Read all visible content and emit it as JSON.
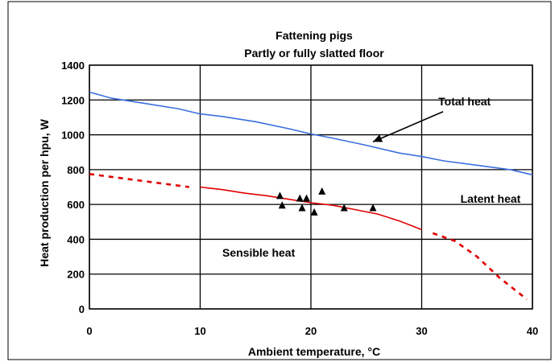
{
  "chart_data": {
    "type": "line",
    "title": "Fattening pigs",
    "subtitle": "Partly or fully slatted floor",
    "xlabel": "Ambient temperature, °C",
    "ylabel": "Heat production per hpu, W",
    "xlim": [
      0,
      40
    ],
    "ylim": [
      0,
      1400
    ],
    "x_ticks": [
      "0",
      "10",
      "20",
      "30",
      "40"
    ],
    "y_ticks": [
      "0",
      "200",
      "400",
      "600",
      "800",
      "1000",
      "1200",
      "1400"
    ],
    "grid": true,
    "series": [
      {
        "name": "Total heat",
        "color": "#3a6fe0",
        "style": "solid",
        "x": [
          0,
          2,
          5,
          8,
          10,
          12,
          15,
          18,
          20,
          22,
          25,
          28,
          30,
          32,
          35,
          38,
          40
        ],
        "y": [
          1245,
          1210,
          1180,
          1150,
          1120,
          1105,
          1075,
          1035,
          1005,
          980,
          940,
          895,
          875,
          850,
          825,
          800,
          770
        ]
      },
      {
        "name": "Latent heat",
        "color": "#e00000",
        "style": "solid",
        "x": [
          10,
          12,
          14,
          16,
          18,
          20,
          22,
          24,
          26,
          28,
          30
        ],
        "y": [
          700,
          685,
          665,
          650,
          630,
          610,
          595,
          570,
          545,
          505,
          455
        ]
      },
      {
        "name": "Sensible heat",
        "color": "#e00000",
        "style": "dashed",
        "segments": [
          {
            "x": [
              0,
              3,
              6,
              9
            ],
            "y": [
              775,
              750,
              725,
              700
            ]
          },
          {
            "x": [
              31,
              33,
              35,
              37,
              39.5
            ],
            "y": [
              435,
              390,
              300,
              180,
              55
            ]
          }
        ]
      }
    ],
    "measured_points": {
      "marker": "triangle",
      "x": [
        17.2,
        17.4,
        19.0,
        19.2,
        19.6,
        20.3,
        21.0,
        23.0,
        25.6
      ],
      "y": [
        650,
        595,
        635,
        580,
        635,
        555,
        675,
        580,
        580
      ]
    },
    "annotations": [
      {
        "text": "Total heat",
        "x": 31.5,
        "y": 1170,
        "arrow_to": [
          25.6,
          960
        ]
      },
      {
        "text": "Latent heat",
        "x": 33.5,
        "y": 610
      },
      {
        "text": "Sensible heat",
        "x": 12,
        "y": 300
      }
    ]
  }
}
